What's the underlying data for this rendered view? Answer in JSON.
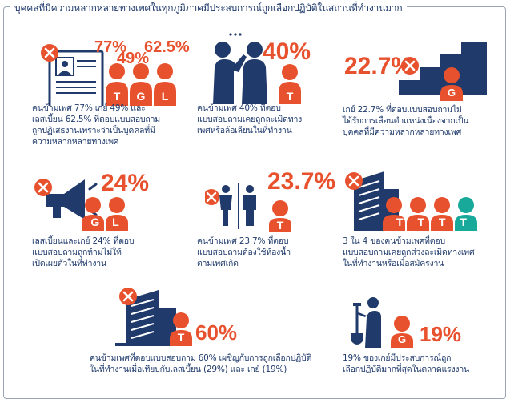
{
  "title": "บุคคลที่มีความหลากหลายทางเพศในทุกภูมิภาคมีประสบการณ์ถูกเลือกปฏิบัติในสถานที่ทำงานมาก",
  "colors": {
    "orange": "#e8512d",
    "navy": "#1f3a6b",
    "teal": "#19a99a",
    "white": "#ffffff"
  },
  "cards": [
    {
      "id": "job-rejection",
      "icon": "resume-icon",
      "stats": [
        {
          "value": "77%",
          "letter": "T"
        },
        {
          "value": "49%",
          "letter": "G"
        },
        {
          "value": "62.5%",
          "letter": "L"
        }
      ],
      "caption": [
        "คนข้ามเพศ 77% เกย์ 49% และ",
        "เลสเบี้ยน 62.5% ที่ตอบแบบสอบถาม",
        "ถูกปฏิเสธงานเพราะว่าเป็นบุคคลที่มี",
        "ความหลากหลายทางเพศ"
      ]
    },
    {
      "id": "harassment",
      "icon": "whisper-icon",
      "stats": [
        {
          "value": "40%",
          "letter": "T"
        }
      ],
      "caption": [
        "คนข้ามเพศ 40% ที่ตอบ",
        "แบบสอบถามเคยถูกละเมิดทาง",
        "เพศหรือล้อเลียนในที่ทำงาน"
      ]
    },
    {
      "id": "promotion",
      "icon": "stairs-icon",
      "stats": [
        {
          "value": "22.7%",
          "letter": "G"
        }
      ],
      "caption": [
        "เกย์ 22.7% ที่ตอบแบบสอบถามไม่",
        "ได้รับการเลื่อนตำแหน่งเนื่องจากเป็น",
        "บุคคลที่มีความหลากหลายทางเพศ"
      ]
    },
    {
      "id": "not-disclose",
      "icon": "megaphone-icon",
      "stats": [
        {
          "value": "24%",
          "letter": "G L"
        }
      ],
      "caption": [
        "เลสเบี้ยนและเกย์ 24% ที่ตอบ",
        "แบบสอบถามถูกห้ามไม่ให้",
        "เปิดเผยตัวในที่ทำงาน"
      ]
    },
    {
      "id": "bathroom",
      "icon": "restroom-icon",
      "stats": [
        {
          "value": "23.7%",
          "letter": "T"
        }
      ],
      "caption": [
        "คนข้ามเพศ 23.7% ที่ตอบ",
        "แบบสอบถามต้องใช้ห้องน้ำ",
        "ตามเพศเกิด"
      ]
    },
    {
      "id": "workplace-or-applying",
      "icon": "building-icon",
      "stats": [
        {
          "value": "",
          "letter": "T T T T"
        }
      ],
      "caption": [
        "3 ใน 4 ของคนข้ามเพศที่ตอบ",
        "แบบสอบถามเคยถูกส่วงละเมิดทางเพศ",
        "ในที่ทำงานหรือเมื่อสมัครงาน"
      ]
    },
    {
      "id": "discrimination-compare",
      "icon": "office-icon",
      "stats": [
        {
          "value": "60%",
          "letter": "T"
        }
      ],
      "caption": [
        "คนข้ามเพศที่ตอบแบบสอบถาม 60% เผชิญกับการถูกเลือกปฏิบัติ",
        "ในที่ทำงานเมื่อเทียบกับเลสเบี้ยน (29%) และ เกย์ (19%)"
      ]
    },
    {
      "id": "labor-market",
      "icon": "shovel-icon",
      "stats": [
        {
          "value": "19%",
          "letter": "G"
        }
      ],
      "caption": [
        "19% ของเกย์มีประสบการณ์ถูก",
        "เลือกปฏิบัติมากที่สุดในตลาดแรงงาน"
      ]
    }
  ]
}
